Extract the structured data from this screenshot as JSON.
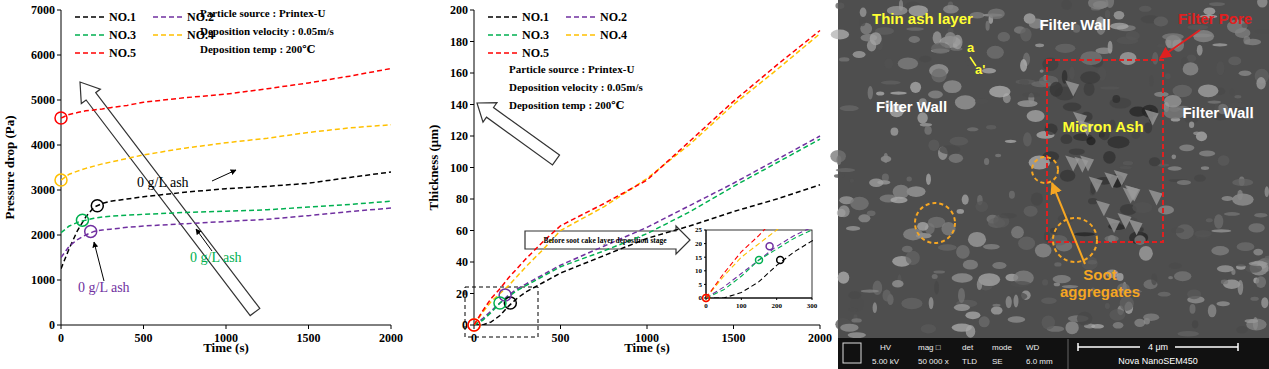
{
  "chart_data": [
    {
      "type": "line",
      "x_label": "Time (s)",
      "y_label": "Pressure drop (Pa)",
      "x": [
        0,
        50,
        100,
        150,
        200,
        250,
        300,
        400,
        500,
        750,
        1000,
        1250,
        1500,
        1750,
        2000
      ],
      "xlim": [
        0,
        2000
      ],
      "xticks": [
        0,
        500,
        1000,
        1500,
        2000
      ],
      "ylim": [
        0,
        7000
      ],
      "yticks": [
        0,
        1000,
        2000,
        3000,
        4000,
        5000,
        6000,
        7000
      ],
      "grid": false,
      "legend": "upper left",
      "line_style": "dashed",
      "annotations": [
        "Particle source : Printex-U",
        "Deposition velocity : 0.05m/s",
        "Deposition temp : 200℃",
        "0 g/L ash",
        "0 g/L ash",
        "0 g/L ash"
      ],
      "series": [
        {
          "name": "NO.1",
          "color": "#000000",
          "values": [
            1250,
            1700,
            2100,
            2400,
            2620,
            2700,
            2750,
            2800,
            2850,
            2950,
            3030,
            3080,
            3150,
            3280,
            3400
          ],
          "transition_point": [
            220,
            2650
          ]
        },
        {
          "name": "NO.2",
          "color": "#7030a0",
          "values": [
            1500,
            1750,
            1900,
            2000,
            2080,
            2110,
            2130,
            2170,
            2200,
            2250,
            2300,
            2350,
            2430,
            2520,
            2600
          ],
          "transition_point": [
            180,
            2080
          ]
        },
        {
          "name": "NO.3",
          "color": "#00b050",
          "values": [
            2050,
            2200,
            2280,
            2330,
            2370,
            2400,
            2420,
            2440,
            2460,
            2500,
            2530,
            2560,
            2620,
            2680,
            2750
          ],
          "transition_point": [
            130,
            2330
          ]
        },
        {
          "name": "NO.4",
          "color": "#ffc000",
          "values": [
            3220,
            3350,
            3420,
            3480,
            3530,
            3580,
            3620,
            3700,
            3780,
            3930,
            4050,
            4150,
            4280,
            4380,
            4450
          ],
          "transition_point": [
            0,
            3220
          ]
        },
        {
          "name": "NO.5",
          "color": "#ff0000",
          "values": [
            4600,
            4680,
            4720,
            4760,
            4780,
            4800,
            4830,
            4880,
            4950,
            5050,
            5130,
            5250,
            5380,
            5530,
            5700
          ],
          "transition_point": [
            0,
            4600
          ]
        }
      ]
    },
    {
      "type": "line",
      "x_label": "Time (s)",
      "y_label": "Thickness (μm)",
      "x": [
        0,
        50,
        100,
        150,
        200,
        250,
        300,
        400,
        500,
        750,
        1000,
        1250,
        1500,
        1750,
        2000
      ],
      "xlim": [
        0,
        2000
      ],
      "xticks": [
        0,
        500,
        1000,
        1500,
        2000
      ],
      "ylim": [
        0,
        200
      ],
      "yticks": [
        0,
        20,
        40,
        60,
        80,
        100,
        120,
        140,
        160,
        180,
        200
      ],
      "grid": false,
      "legend": "upper left",
      "line_style": "dashed",
      "annotations": [
        "Particle source : Printex-U",
        "Deposition velocity : 0.05m/s",
        "Deposition temp : 200℃",
        "Before soot cake layer deposition stage"
      ],
      "inset": {
        "xlim": [
          0,
          300
        ],
        "ylim": [
          0,
          25
        ],
        "xticks": [
          0,
          100,
          200,
          300
        ],
        "yticks": [
          0,
          5,
          10,
          15,
          20,
          25
        ]
      },
      "series": [
        {
          "name": "NO.1",
          "color": "#000000",
          "values": [
            0,
            0,
            2,
            6,
            12,
            17,
            21,
            27,
            33,
            44,
            55,
            63,
            72,
            80,
            89
          ],
          "transition_point": [
            210,
            14
          ]
        },
        {
          "name": "NO.2",
          "color": "#7030a0",
          "values": [
            0,
            4,
            9,
            14,
            19,
            23,
            26,
            32,
            38,
            50,
            62,
            76,
            90,
            105,
            120
          ],
          "transition_point": [
            180,
            19
          ]
        },
        {
          "name": "NO.3",
          "color": "#00b050",
          "values": [
            0,
            3,
            8,
            14,
            18,
            22,
            25,
            31,
            37,
            47,
            58,
            72,
            88,
            103,
            118
          ],
          "transition_point": [
            150,
            14
          ]
        },
        {
          "name": "NO.4",
          "color": "#ffc000",
          "values": [
            0,
            8,
            15,
            20,
            25,
            31,
            37,
            48,
            60,
            75,
            93,
            115,
            140,
            162,
            185
          ],
          "transition_point": [
            0,
            0
          ]
        },
        {
          "name": "NO.5",
          "color": "#ff0000",
          "values": [
            0,
            9,
            17,
            23,
            30,
            36,
            42,
            53,
            63,
            77,
            92,
            117,
            142,
            165,
            187
          ],
          "transition_point": [
            0,
            0
          ]
        }
      ]
    }
  ],
  "micrograph": {
    "thin_ash_layer": "Thin ash layer",
    "a": "a",
    "a_prime": "a'",
    "filter_wall": [
      "Filter Wall",
      "Filter Wall",
      "Filter Wall"
    ],
    "filter_pore": "Filter Pore",
    "micron_ash": "Micron Ash",
    "soot_aggregates": "Soot aggregates",
    "info_labels": [
      "HV",
      "mag □",
      "det",
      "mode",
      "WD"
    ],
    "info_values": [
      "5.00 kV",
      "50 000 x",
      "TLD",
      "SE",
      "6.0 mm"
    ],
    "scale_bar": "4 μm",
    "instrument": "Nova NanoSEM450"
  }
}
